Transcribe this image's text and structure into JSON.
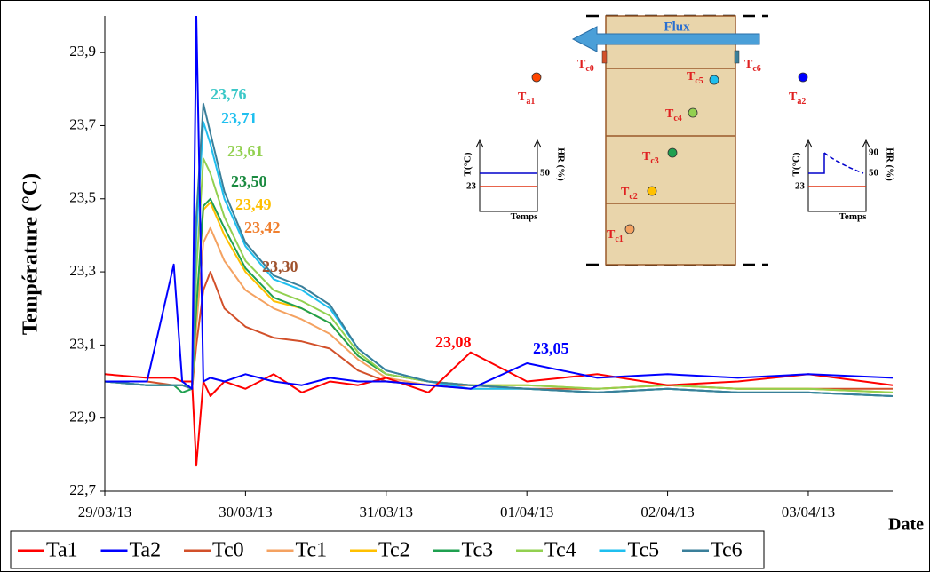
{
  "chart_data": {
    "type": "line",
    "y_label": "Température (°C)",
    "x_label": "Date",
    "x": [
      0,
      0.3,
      0.49,
      0.55,
      0.62,
      0.65,
      0.7,
      0.75,
      0.85,
      1.0,
      1.2,
      1.4,
      1.6,
      1.8,
      2.0,
      2.3,
      2.6,
      3.0,
      3.5,
      4.0,
      4.5,
      5.0,
      5.6
    ],
    "xlim": [
      0,
      5.6
    ],
    "xticks": [
      {
        "value": 0,
        "label": "29/03/13"
      },
      {
        "value": 1,
        "label": "30/03/13"
      },
      {
        "value": 2,
        "label": "31/03/13"
      },
      {
        "value": 3,
        "label": "01/04/13"
      },
      {
        "value": 4,
        "label": "02/04/13"
      },
      {
        "value": 5,
        "label": "03/04/13"
      }
    ],
    "ylim": [
      22.7,
      24.0
    ],
    "yticks": [
      {
        "value": 22.7,
        "label": "22,7"
      },
      {
        "value": 22.9,
        "label": "22,9"
      },
      {
        "value": 23.1,
        "label": "23,1"
      },
      {
        "value": 23.3,
        "label": "23,3"
      },
      {
        "value": 23.5,
        "label": "23,5"
      },
      {
        "value": 23.7,
        "label": "23,7"
      },
      {
        "value": 23.9,
        "label": "23,9"
      }
    ],
    "series": [
      {
        "name": "Tc0",
        "color": "#d2502a",
        "values": [
          23.0,
          23.0,
          22.99,
          22.99,
          22.98,
          23.1,
          23.25,
          23.3,
          23.2,
          23.15,
          23.12,
          23.11,
          23.09,
          23.03,
          23.0,
          22.99,
          22.99,
          22.98,
          22.98,
          22.99,
          22.98,
          22.98,
          22.98
        ]
      },
      {
        "name": "Tc1",
        "color": "#f4a261",
        "values": [
          23.0,
          22.99,
          22.99,
          22.99,
          22.98,
          23.15,
          23.38,
          23.42,
          23.33,
          23.25,
          23.2,
          23.17,
          23.13,
          23.06,
          23.01,
          22.99,
          22.98,
          22.98,
          22.97,
          22.98,
          22.97,
          22.97,
          22.96
        ]
      },
      {
        "name": "Tc2",
        "color": "#ffc000",
        "values": [
          23.0,
          22.99,
          22.99,
          22.99,
          22.98,
          23.2,
          23.47,
          23.49,
          23.4,
          23.3,
          23.22,
          23.2,
          23.16,
          23.07,
          23.02,
          23.0,
          22.99,
          22.99,
          22.98,
          22.99,
          22.98,
          22.98,
          22.97
        ]
      },
      {
        "name": "Tc3",
        "color": "#1fa050",
        "values": [
          23.0,
          22.99,
          22.99,
          22.97,
          22.98,
          23.2,
          23.48,
          23.5,
          23.42,
          23.31,
          23.23,
          23.2,
          23.16,
          23.07,
          23.02,
          23.0,
          22.99,
          22.98,
          22.97,
          22.98,
          22.97,
          22.97,
          22.96
        ]
      },
      {
        "name": "Tc4",
        "color": "#92d050",
        "values": [
          23.0,
          22.99,
          22.99,
          22.99,
          22.98,
          23.3,
          23.61,
          23.57,
          23.45,
          23.33,
          23.25,
          23.22,
          23.18,
          23.08,
          23.02,
          23.0,
          22.99,
          22.99,
          22.98,
          22.99,
          22.98,
          22.98,
          22.97
        ]
      },
      {
        "name": "Tc5",
        "color": "#1fbfef",
        "values": [
          23.0,
          22.99,
          22.99,
          22.99,
          22.98,
          23.4,
          23.71,
          23.65,
          23.5,
          23.37,
          23.28,
          23.25,
          23.2,
          23.09,
          23.03,
          23.0,
          22.98,
          22.98,
          22.97,
          22.98,
          22.97,
          22.97,
          22.96
        ]
      },
      {
        "name": "Tc6",
        "color": "#3a7f9a",
        "values": [
          23.0,
          22.99,
          22.99,
          22.99,
          22.98,
          23.45,
          23.76,
          23.68,
          23.52,
          23.38,
          23.29,
          23.26,
          23.21,
          23.09,
          23.03,
          23.0,
          22.99,
          22.98,
          22.97,
          22.98,
          22.97,
          22.97,
          22.96
        ]
      },
      {
        "name": "Ta1",
        "color": "#ff0000",
        "values": [
          23.02,
          23.01,
          23.01,
          23.0,
          23.0,
          22.77,
          23.0,
          22.96,
          23.0,
          22.98,
          23.02,
          22.97,
          23.0,
          22.99,
          23.01,
          22.97,
          23.08,
          23.0,
          23.02,
          22.99,
          23.0,
          23.02,
          22.99
        ]
      },
      {
        "name": "Ta2",
        "color": "#0000ff",
        "values": [
          23.0,
          23.0,
          23.32,
          23.0,
          22.98,
          24.0,
          23.0,
          23.01,
          23.0,
          23.02,
          23.0,
          22.99,
          23.01,
          23.0,
          23.0,
          22.99,
          22.98,
          23.05,
          23.01,
          23.02,
          23.01,
          23.02,
          23.01
        ]
      }
    ],
    "legend_order": [
      "Ta1",
      "Ta2",
      "Tc0",
      "Tc1",
      "Tc2",
      "Tc3",
      "Tc4",
      "Tc5",
      "Tc6"
    ],
    "annotations": [
      {
        "text": "23,76",
        "color": "#3cc8c8"
      },
      {
        "text": "23,71",
        "color": "#1fbfef"
      },
      {
        "text": "23,61",
        "color": "#92d050"
      },
      {
        "text": "23,50",
        "color": "#1a8a40"
      },
      {
        "text": "23,49",
        "color": "#ffc000"
      },
      {
        "text": "23,42",
        "color": "#f08030"
      },
      {
        "text": "23,30",
        "color": "#a0522d"
      },
      {
        "text": "23,08",
        "color": "#ff0000"
      },
      {
        "text": "23,05",
        "color": "#0000ff"
      }
    ],
    "inset": {
      "flux": "Flux",
      "sensors": [
        {
          "symbol": "T",
          "index": "c0",
          "color": "#d2502a"
        },
        {
          "symbol": "T",
          "index": "c6",
          "color": "#3a7f9a"
        },
        {
          "symbol": "T",
          "index": "a1",
          "color": "#ff4500"
        },
        {
          "symbol": "T",
          "index": "a2",
          "color": "#0000ff"
        },
        {
          "symbol": "T",
          "index": "c5",
          "color": "#1fbfef"
        },
        {
          "symbol": "T",
          "index": "c4",
          "color": "#92d050"
        },
        {
          "symbol": "T",
          "index": "c3",
          "color": "#1fa050"
        },
        {
          "symbol": "T",
          "index": "c2",
          "color": "#ffc000"
        },
        {
          "symbol": "T",
          "index": "c1",
          "color": "#f4a261"
        }
      ],
      "left_graph": {
        "y_label": "T(°C)",
        "y2_label": "HR (%)",
        "x_label": "Temps",
        "t_level": "23",
        "hr_level": "50"
      },
      "right_graph": {
        "y_label": "T(°C)",
        "y2_label": "HR (%)",
        "x_label": "Temps",
        "t_level": "23",
        "hr_level": "50",
        "hr_high": "90"
      }
    }
  }
}
